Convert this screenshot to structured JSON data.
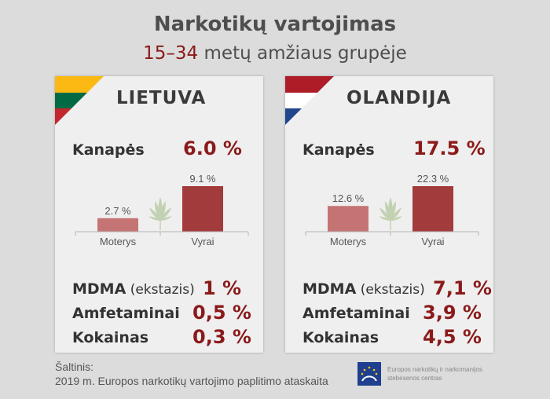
{
  "title": "Narkotikų vartojimas",
  "subtitle_accent": "15–34",
  "subtitle_rest": " metų amžiaus grupėje",
  "colors": {
    "accent": "#8b1a1a",
    "bar_women": "#c57474",
    "bar_men": "#a23b3b"
  },
  "panels": [
    {
      "country": "LIETUVA",
      "flag": [
        "#fdb913",
        "#006a44",
        "#c1272d"
      ],
      "cannabis_label": "Kanapės",
      "cannabis_value": "6.0 %",
      "rows": [
        {
          "label": "MDMA",
          "note": " (ekstazis)",
          "value": "1 %"
        },
        {
          "label": "Amfetaminai",
          "value": "0,5 %"
        },
        {
          "label": "Kokainas",
          "value": "0,3 %"
        }
      ]
    },
    {
      "country": "OLANDIJA",
      "flag": [
        "#ae1c28",
        "#ffffff",
        "#21468b"
      ],
      "cannabis_label": "Kanapės",
      "cannabis_value": "17.5 %",
      "rows": [
        {
          "label": "MDMA",
          "note": " (ekstazis)",
          "value": "7,1 %"
        },
        {
          "label": "Amfetaminai",
          "value": "3,9 %"
        },
        {
          "label": "Kokainas",
          "value": "4,5 %"
        }
      ]
    }
  ],
  "chart_data": [
    {
      "type": "bar",
      "categories": [
        "Moterys",
        "Vyrai"
      ],
      "values": [
        2.7,
        9.1
      ],
      "value_labels": [
        "2.7 %",
        "9.1 %"
      ]
    },
    {
      "type": "bar",
      "categories": [
        "Moterys",
        "Vyrai"
      ],
      "values": [
        12.6,
        22.3
      ],
      "value_labels": [
        "12.6 %",
        "22.3 %"
      ]
    }
  ],
  "source": {
    "line1": "Šaltinis:",
    "line2": "2019 m. Europos narkotikų vartojimo paplitimo ataskaita"
  },
  "org": {
    "line1": "Europos narkotikų ir narkomanijos",
    "line2": "stebėsenos centras",
    "icon": "emcdda-logo"
  }
}
